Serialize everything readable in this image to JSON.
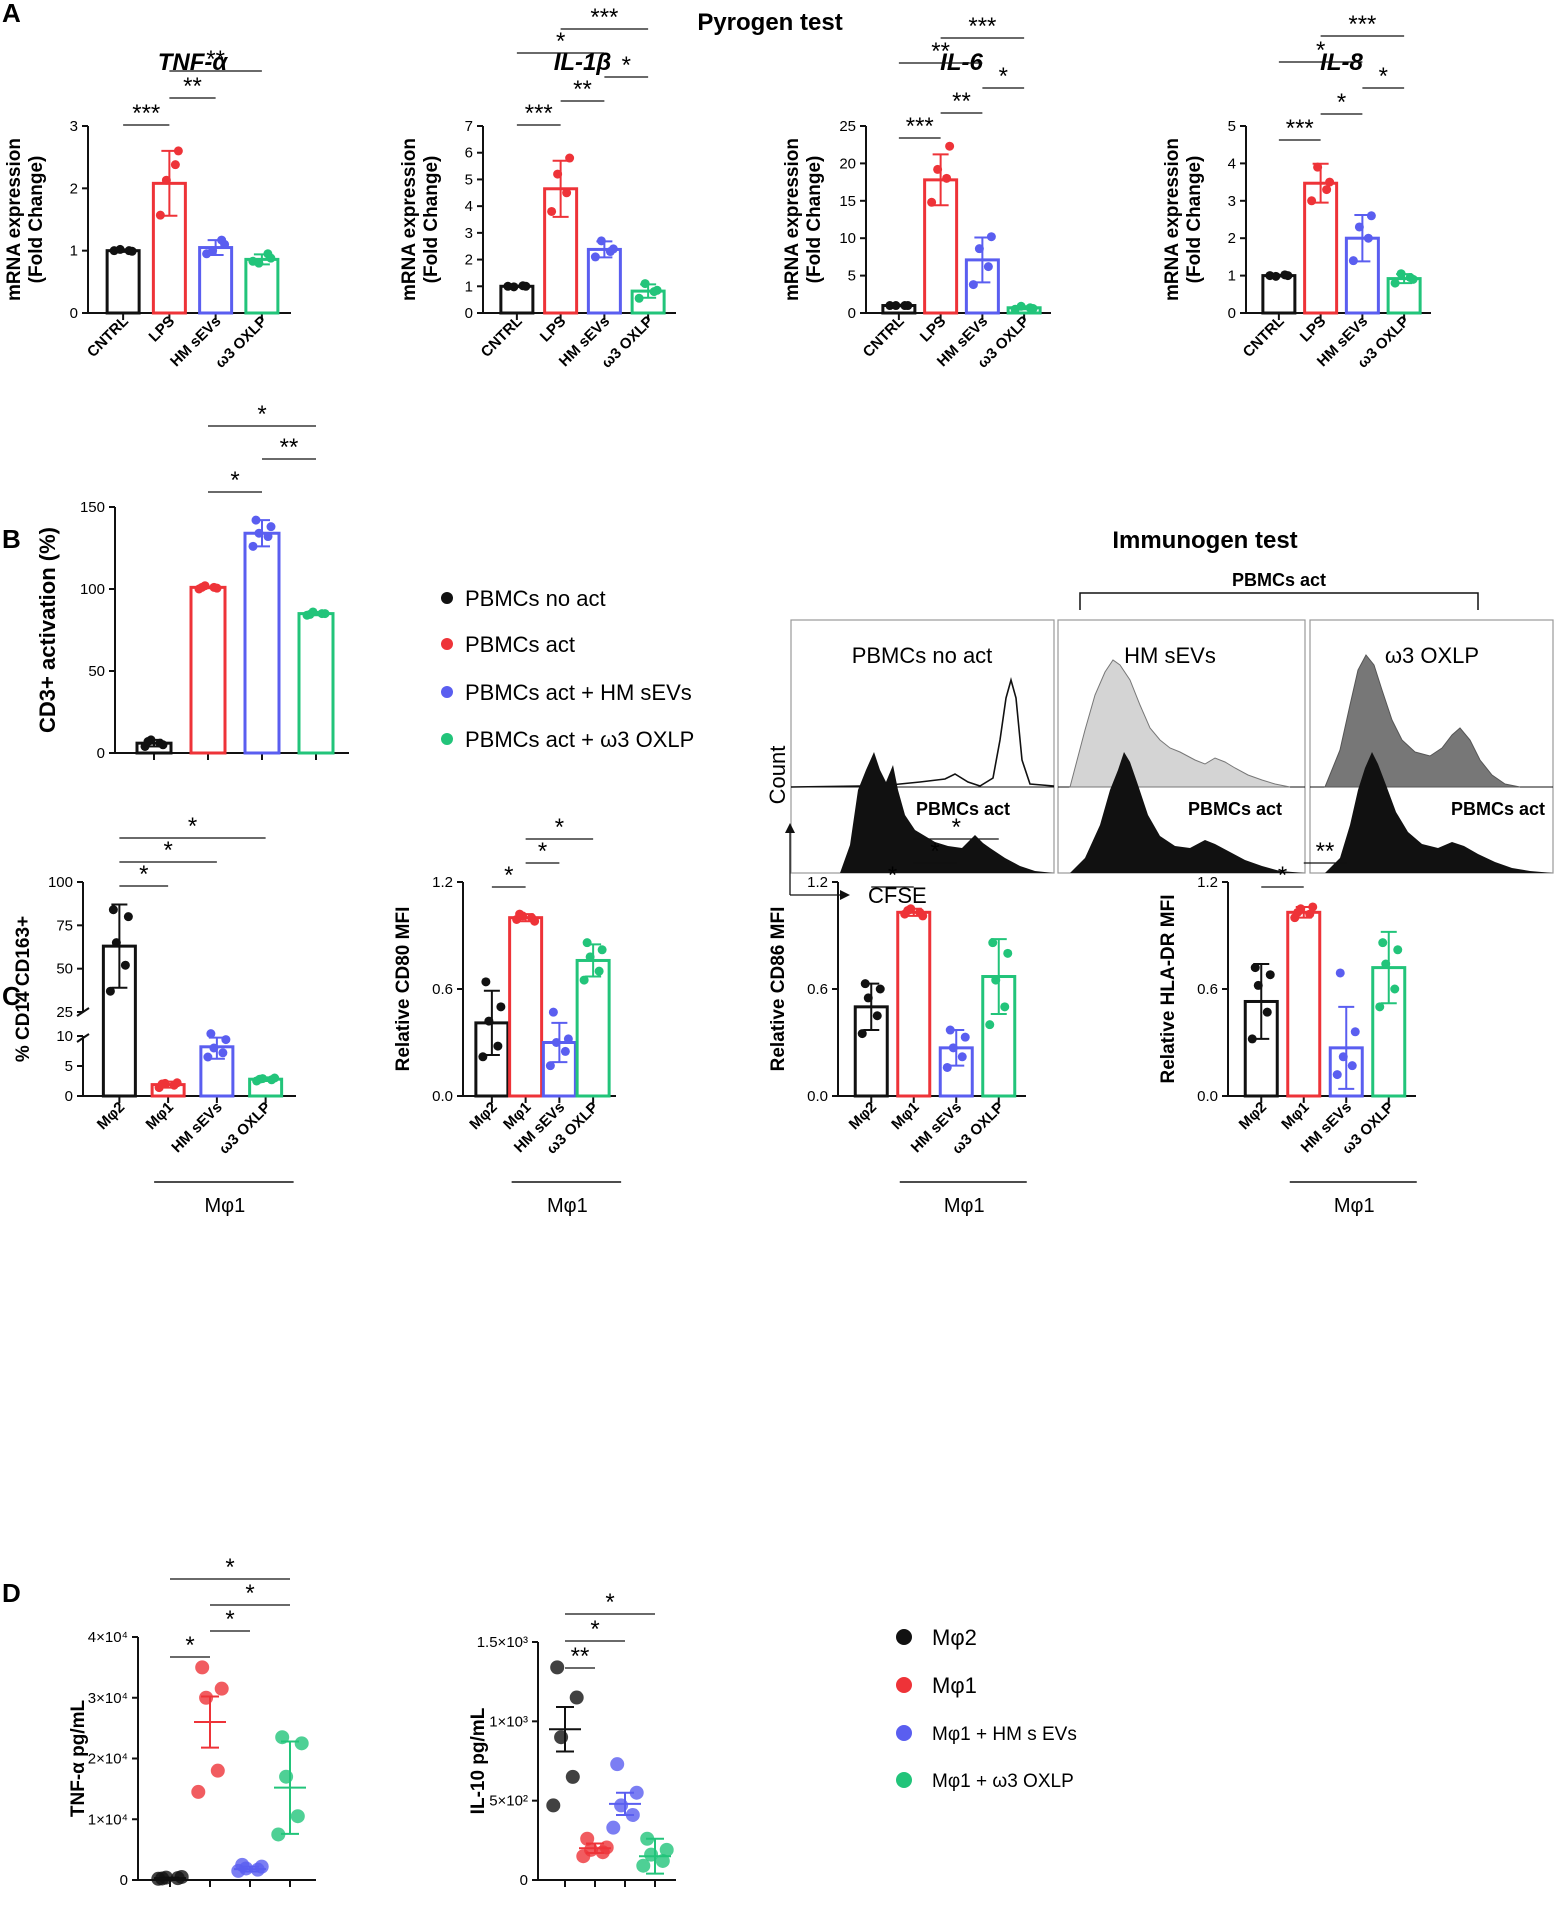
{
  "panels": {
    "A": "A",
    "B": "B",
    "C": "C",
    "D": "D"
  },
  "colors": {
    "black": "#111111",
    "red": "#ee3338",
    "blue": "#5a5ef0",
    "green": "#22c47a",
    "lightgray": "#d4d4d4",
    "darkgray": "#777777"
  },
  "panelA": {
    "title": "Pyrogen test",
    "ylabel": [
      "mRNA expression",
      "(Fold Change)"
    ],
    "categories": [
      "CNTRL",
      "LPS",
      "HM sEVs",
      "ω3 OXLP"
    ]
  },
  "panelB": {
    "legend": [
      "PBMCs no act",
      "PBMCs act",
      "PBMCs act + HM sEVs",
      "PBMCs act + ω3 OXLP"
    ],
    "immunogen_title": "Immunogen test",
    "act_label": "PBMCs act",
    "hist_titles": [
      "PBMCs no act",
      "HM sEVs",
      "ω3 OXLP"
    ],
    "hist_bottom_label": "PBMCs act",
    "count_label": "Count",
    "cfse_label": "CFSE"
  },
  "panelC": {
    "categories": [
      "Mφ2",
      "Mφ1",
      "HM sEVs",
      "ω3 OXLP"
    ],
    "group_label": "Mφ1"
  },
  "panelD": {
    "legend": [
      "Mφ2",
      "Mφ1",
      "Mφ1 + HM s EVs",
      "Mφ1 + ω3 OXLP"
    ]
  },
  "chart_data": [
    {
      "id": "A1",
      "type": "bar",
      "title": "TNF-α",
      "ylabel": "mRNA expression (Fold Change)",
      "categories": [
        "CNTRL",
        "LPS",
        "HM sEVs",
        "ω3 OXLP"
      ],
      "ylim": [
        0,
        3
      ],
      "yticks": [
        0,
        1,
        2,
        3
      ],
      "values": [
        1.0,
        2.08,
        1.05,
        0.86
      ],
      "sd": [
        0.02,
        0.52,
        0.12,
        0.08
      ],
      "points": [
        [
          1.0,
          1.0,
          1.02,
          0.99
        ],
        [
          1.57,
          2.38,
          2.13,
          2.6
        ],
        [
          0.95,
          1.17,
          1.0,
          1.1
        ],
        [
          0.83,
          0.95,
          0.8,
          0.88
        ]
      ],
      "significance": [
        {
          "from": 0,
          "to": 1,
          "label": "***"
        },
        {
          "from": 1,
          "to": 2,
          "label": "**"
        },
        {
          "from": 1,
          "to": 3,
          "label": "**"
        }
      ]
    },
    {
      "id": "A2",
      "type": "bar",
      "title": "IL-1β",
      "ylabel": "mRNA expression (Fold Change)",
      "categories": [
        "CNTRL",
        "LPS",
        "HM sEVs",
        "ω3 OXLP"
      ],
      "ylim": [
        0,
        7
      ],
      "yticks": [
        0,
        1,
        2,
        3,
        4,
        5,
        6,
        7
      ],
      "values": [
        1.0,
        4.65,
        2.38,
        0.82
      ],
      "sd": [
        0.02,
        1.05,
        0.3,
        0.25
      ],
      "points": [
        [
          1.0,
          1.02,
          0.98,
          1.0
        ],
        [
          3.8,
          4.5,
          5.2,
          5.8
        ],
        [
          2.1,
          2.3,
          2.7,
          2.4
        ],
        [
          0.55,
          0.8,
          1.1,
          0.85
        ]
      ],
      "significance": [
        {
          "from": 0,
          "to": 1,
          "label": "***"
        },
        {
          "from": 0,
          "to": 2,
          "label": "*"
        },
        {
          "from": 1,
          "to": 2,
          "label": "**"
        },
        {
          "from": 1,
          "to": 3,
          "label": "***"
        },
        {
          "from": 2,
          "to": 3,
          "label": "*"
        }
      ]
    },
    {
      "id": "A3",
      "type": "bar",
      "title": "IL-6",
      "ylabel": "mRNA expression (Fold Change)",
      "categories": [
        "CNTRL",
        "LPS",
        "HM sEVs",
        "ω3 OXLP"
      ],
      "ylim": [
        0,
        25
      ],
      "yticks": [
        0,
        5,
        10,
        15,
        20,
        25
      ],
      "values": [
        1.0,
        17.8,
        7.1,
        0.7
      ],
      "sd": [
        0.1,
        3.4,
        3.0,
        0.2
      ],
      "points": [
        [
          1.0,
          1.0,
          1.0,
          1.0
        ],
        [
          14.8,
          18.0,
          19.2,
          22.3
        ],
        [
          3.8,
          6.2,
          8.6,
          10.2
        ],
        [
          0.5,
          0.7,
          0.9,
          0.6
        ]
      ],
      "significance": [
        {
          "from": 0,
          "to": 1,
          "label": "***"
        },
        {
          "from": 0,
          "to": 2,
          "label": "**"
        },
        {
          "from": 1,
          "to": 2,
          "label": "**"
        },
        {
          "from": 1,
          "to": 3,
          "label": "***"
        },
        {
          "from": 2,
          "to": 3,
          "label": "*"
        }
      ]
    },
    {
      "id": "A4",
      "type": "bar",
      "title": "IL-8",
      "ylabel": "mRNA expression (Fold Change)",
      "categories": [
        "CNTRL",
        "LPS",
        "HM sEVs",
        "ω3 OXLP"
      ],
      "ylim": [
        0,
        5
      ],
      "yticks": [
        0,
        1,
        2,
        3,
        4,
        5
      ],
      "values": [
        1.0,
        3.47,
        2.0,
        0.92
      ],
      "sd": [
        0.02,
        0.52,
        0.62,
        0.12
      ],
      "points": [
        [
          1.0,
          1.02,
          0.98,
          1.0
        ],
        [
          3.0,
          3.3,
          3.9,
          3.5
        ],
        [
          1.4,
          2.0,
          2.3,
          2.6
        ],
        [
          0.8,
          0.95,
          1.05,
          0.9
        ]
      ],
      "significance": [
        {
          "from": 0,
          "to": 1,
          "label": "***"
        },
        {
          "from": 0,
          "to": 2,
          "label": "*"
        },
        {
          "from": 1,
          "to": 2,
          "label": "*"
        },
        {
          "from": 1,
          "to": 3,
          "label": "***"
        },
        {
          "from": 2,
          "to": 3,
          "label": "*"
        }
      ]
    },
    {
      "id": "B1",
      "type": "bar",
      "title": "",
      "ylabel": "CD3+ activation (%)",
      "categories": [
        "PBMCs no act",
        "PBMCs act",
        "PBMCs act + HM sEVs",
        "PBMCs act + ω3 OXLP"
      ],
      "ylim": [
        0,
        150
      ],
      "yticks": [
        0,
        50,
        100,
        150
      ],
      "values": [
        6,
        101,
        134,
        85
      ],
      "sd": [
        2,
        0.5,
        8,
        1
      ],
      "points": [
        [
          4,
          6,
          8,
          5,
          7
        ],
        [
          100,
          101,
          102,
          100.5,
          101
        ],
        [
          126,
          132,
          134,
          138,
          142
        ],
        [
          84,
          85,
          86,
          85,
          84.5
        ]
      ],
      "significance": [
        {
          "from": 1,
          "to": 2,
          "label": "*"
        },
        {
          "from": 2,
          "to": 3,
          "label": "**"
        },
        {
          "from": 1,
          "to": 3,
          "label": "*"
        }
      ]
    },
    {
      "id": "C1",
      "type": "bar",
      "title": "",
      "ylabel": "% CD14 CD163+",
      "categories": [
        "Mφ2",
        "Mφ1",
        "HM sEVs",
        "ω3 OXLP"
      ],
      "ylim": [
        0,
        100
      ],
      "yticks": [
        0,
        5,
        10,
        25,
        50,
        75,
        100
      ],
      "axis_break": [
        10,
        25
      ],
      "values": [
        63,
        1.9,
        8.2,
        2.8
      ],
      "sd": [
        24,
        0.5,
        2,
        0.3
      ],
      "points": [
        [
          37,
          52,
          65,
          80,
          84
        ],
        [
          1.4,
          1.8,
          2.1,
          2.2,
          2.0
        ],
        [
          6.5,
          7.2,
          8.0,
          9.4,
          12.5
        ],
        [
          2.5,
          2.7,
          2.9,
          3.0,
          2.8
        ]
      ],
      "significance": [
        {
          "from": 0,
          "to": 1,
          "label": "*"
        },
        {
          "from": 0,
          "to": 2,
          "label": "*"
        },
        {
          "from": 0,
          "to": 3,
          "label": "*"
        }
      ]
    },
    {
      "id": "C2",
      "type": "bar",
      "title": "",
      "ylabel": "Relative CD80 MFI",
      "categories": [
        "Mφ2",
        "Mφ1",
        "HM sEVs",
        "ω3 OXLP"
      ],
      "ylim": [
        0,
        1.2
      ],
      "yticks": [
        0.0,
        0.6,
        1.2
      ],
      "values": [
        0.41,
        1.0,
        0.3,
        0.76
      ],
      "sd": [
        0.18,
        0.02,
        0.11,
        0.09
      ],
      "points": [
        [
          0.22,
          0.28,
          0.42,
          0.5,
          0.64
        ],
        [
          0.99,
          1.0,
          1.01,
          0.98,
          1.02
        ],
        [
          0.17,
          0.25,
          0.3,
          0.32,
          0.47
        ],
        [
          0.65,
          0.7,
          0.78,
          0.82,
          0.86
        ]
      ],
      "significance": [
        {
          "from": 0,
          "to": 1,
          "label": "*"
        },
        {
          "from": 1,
          "to": 2,
          "label": "*"
        },
        {
          "from": 1,
          "to": 3,
          "label": "*"
        }
      ]
    },
    {
      "id": "C3",
      "type": "bar",
      "title": "",
      "ylabel": "Relative CD86 MFI",
      "categories": [
        "Mφ2",
        "Mφ1",
        "HM sEVs",
        "ω3 OXLP"
      ],
      "ylim": [
        0,
        1.2
      ],
      "yticks": [
        0.0,
        0.6,
        1.2
      ],
      "values": [
        0.5,
        1.03,
        0.27,
        0.67
      ],
      "sd": [
        0.13,
        0.02,
        0.1,
        0.21
      ],
      "points": [
        [
          0.35,
          0.45,
          0.55,
          0.6,
          0.63
        ],
        [
          1.02,
          1.03,
          1.05,
          1.01,
          1.04
        ],
        [
          0.16,
          0.22,
          0.27,
          0.33,
          0.37
        ],
        [
          0.4,
          0.5,
          0.65,
          0.8,
          0.86
        ]
      ],
      "significance": [
        {
          "from": 0,
          "to": 1,
          "label": "*"
        },
        {
          "from": 1,
          "to": 2,
          "label": "*"
        },
        {
          "from": 1,
          "to": 3,
          "label": "*"
        }
      ]
    },
    {
      "id": "C4",
      "type": "bar",
      "title": "",
      "ylabel": "Relative HLA-DR MFI",
      "categories": [
        "Mφ2",
        "Mφ1",
        "HM sEVs",
        "ω3 OXLP"
      ],
      "ylim": [
        0,
        1.2
      ],
      "yticks": [
        0.0,
        0.6,
        1.2
      ],
      "values": [
        0.53,
        1.03,
        0.27,
        0.72
      ],
      "sd": [
        0.21,
        0.03,
        0.23,
        0.2
      ],
      "points": [
        [
          0.32,
          0.47,
          0.62,
          0.68,
          0.72
        ],
        [
          1.0,
          1.02,
          1.05,
          1.06,
          1.03
        ],
        [
          0.12,
          0.17,
          0.22,
          0.36,
          0.69
        ],
        [
          0.5,
          0.6,
          0.74,
          0.82,
          0.86
        ]
      ],
      "significance": [
        {
          "from": 0,
          "to": 1,
          "label": "*"
        },
        {
          "from": 1,
          "to": 2,
          "label": "**"
        }
      ]
    },
    {
      "id": "D1",
      "type": "scatter",
      "title": "",
      "ylabel": "TNF-α pg/mL",
      "categories": [
        "Mφ2",
        "Mφ1",
        "Mφ1 + HM s EVs",
        "Mφ1 + ω3 OXLP"
      ],
      "ylim": [
        0,
        40000
      ],
      "yticks": [
        0,
        10000,
        20000,
        30000,
        40000
      ],
      "ytick_labels": [
        "0",
        "1×10⁴",
        "2×10⁴",
        "3×10⁴",
        "4×10⁴"
      ],
      "means": [
        300,
        26000,
        1800,
        15200
      ],
      "sem": [
        100,
        4200,
        400,
        7600
      ],
      "points": [
        [
          200,
          300,
          400,
          500,
          250
        ],
        [
          14500,
          18000,
          30000,
          31500,
          35000
        ],
        [
          1500,
          1700,
          1900,
          2200,
          2500
        ],
        [
          7500,
          10500,
          17000,
          22500,
          23500
        ]
      ],
      "significance": [
        {
          "from": 0,
          "to": 1,
          "label": "*"
        },
        {
          "from": 1,
          "to": 2,
          "label": "*"
        },
        {
          "from": 1,
          "to": 3,
          "label": "*"
        },
        {
          "from": 0,
          "to": 3,
          "label": "*"
        }
      ]
    },
    {
      "id": "D2",
      "type": "scatter",
      "title": "",
      "ylabel": "IL-10 pg/mL",
      "categories": [
        "Mφ2",
        "Mφ1",
        "Mφ1 + HM s EVs",
        "Mφ1 + ω3 OXLP"
      ],
      "ylim": [
        0,
        1500
      ],
      "yticks": [
        0,
        500,
        1000,
        1500
      ],
      "ytick_labels": [
        "0",
        "5×10²",
        "1×10³",
        "1.5×10³"
      ],
      "means": [
        950,
        200,
        480,
        150
      ],
      "sem": [
        140,
        30,
        70,
        110
      ],
      "points": [
        [
          470,
          650,
          900,
          1150,
          1340
        ],
        [
          150,
          175,
          190,
          205,
          260
        ],
        [
          330,
          410,
          470,
          550,
          730
        ],
        [
          90,
          120,
          160,
          190,
          260
        ]
      ],
      "significance": [
        {
          "from": 0,
          "to": 1,
          "label": "**"
        },
        {
          "from": 0,
          "to": 2,
          "label": "*"
        },
        {
          "from": 0,
          "to": 3,
          "label": "*"
        }
      ]
    }
  ]
}
